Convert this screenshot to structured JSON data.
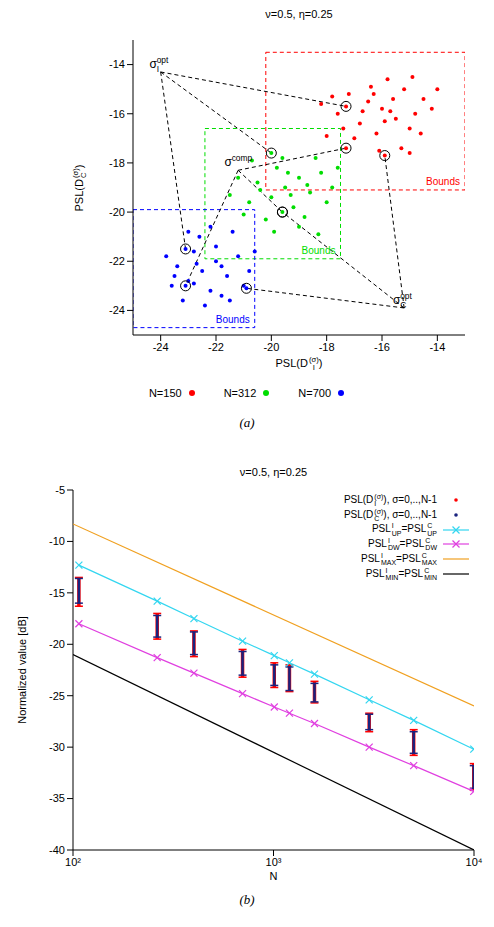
{
  "chart_data": [
    {
      "type": "scatter",
      "title": "ν=0.5, η=0.25",
      "caption": "(a)",
      "x_label": [
        {
          "text": "PSL(D",
          "sub": "I",
          "sup": "(σ)"
        },
        {
          "text": ")"
        }
      ],
      "y_label": [
        {
          "text": "PSL(D",
          "sub": "C",
          "sup": "(σ)"
        },
        {
          "text": ")"
        }
      ],
      "xlim": [
        -25,
        -13
      ],
      "ylim": [
        -25,
        -13
      ],
      "xticks": [
        -24,
        -22,
        -20,
        -18,
        -16,
        -14
      ],
      "yticks": [
        -24,
        -22,
        -20,
        -18,
        -16,
        -14
      ],
      "legend": "bottom",
      "series": [
        {
          "name": "N=150",
          "color": "#ff0000",
          "x": [
            -16.0,
            -15.5,
            -16.5,
            -15.2,
            -14.8,
            -16.8,
            -17.2,
            -15.8,
            -14.5,
            -16.2,
            -15.0,
            -17.6,
            -18.2,
            -14.2,
            -15.6,
            -16.4,
            -17.0,
            -15.3,
            -14.9,
            -16.7,
            -15.9,
            -17.4,
            -18.0,
            -16.1,
            -15.0,
            -14.6,
            -16.3,
            -15.7,
            -17.8,
            -14.0,
            -17.3,
            -17.3,
            -15.9
          ],
          "values": [
            -15.8,
            -16.2,
            -15.5,
            -15.0,
            -16.0,
            -16.4,
            -15.2,
            -14.6,
            -15.4,
            -16.8,
            -16.6,
            -16.0,
            -15.6,
            -15.8,
            -15.4,
            -14.9,
            -17.0,
            -17.4,
            -14.5,
            -15.9,
            -16.3,
            -16.6,
            -16.9,
            -17.5,
            -17.6,
            -16.8,
            -15.2,
            -15.9,
            -15.3,
            -15.0,
            -15.7,
            -17.4,
            -17.7
          ]
        },
        {
          "name": "N=312",
          "color": "#00dd00",
          "x": [
            -19.5,
            -19.0,
            -20.0,
            -18.6,
            -19.8,
            -20.5,
            -18.2,
            -19.2,
            -20.8,
            -18.8,
            -17.8,
            -21.2,
            -19.6,
            -20.2,
            -18.4,
            -19.0,
            -17.6,
            -21.0,
            -19.4,
            -20.4,
            -18.0,
            -19.9,
            -21.5,
            -18.7,
            -20.7,
            -19.3,
            -18.3,
            -20.0,
            -19.6
          ],
          "values": [
            -19.0,
            -18.6,
            -19.4,
            -19.2,
            -18.2,
            -18.8,
            -18.4,
            -19.8,
            -19.6,
            -20.2,
            -19.0,
            -18.6,
            -17.8,
            -20.3,
            -17.8,
            -20.6,
            -18.2,
            -20.1,
            -18.4,
            -19.1,
            -19.6,
            -20.8,
            -19.3,
            -18.9,
            -17.9,
            -19.3,
            -20.9,
            -17.6,
            -20.0
          ]
        },
        {
          "name": "N=700",
          "color": "#0000ff",
          "x": [
            -22.5,
            -22.0,
            -23.0,
            -21.6,
            -22.8,
            -23.4,
            -21.2,
            -22.2,
            -23.6,
            -21.8,
            -20.8,
            -23.8,
            -22.6,
            -22.0,
            -21.4,
            -23.2,
            -22.4,
            -21.0,
            -23.0,
            -22.8,
            -21.8,
            -20.6,
            -23.5,
            -22.2,
            -21.5,
            -22.7,
            -23.1,
            -23.1,
            -20.9
          ],
          "values": [
            -22.4,
            -22.0,
            -22.8,
            -22.6,
            -21.6,
            -22.2,
            -21.8,
            -23.2,
            -23.0,
            -23.4,
            -22.4,
            -21.8,
            -21.0,
            -21.4,
            -20.8,
            -23.6,
            -23.8,
            -23.0,
            -20.8,
            -22.9,
            -22.2,
            -21.6,
            -22.6,
            -20.6,
            -23.6,
            -22.1,
            -21.5,
            -23.0,
            -23.1
          ]
        }
      ],
      "bounds": [
        {
          "label": "Bounds",
          "color": "#ff0000",
          "x": [
            -20.2,
            -13.0
          ],
          "y": [
            -19.1,
            -13.5
          ]
        },
        {
          "label": "Bounds",
          "color": "#00dd00",
          "x": [
            -22.4,
            -17.5
          ],
          "y": [
            -21.9,
            -16.6
          ]
        },
        {
          "label": "Bounds",
          "color": "#0000ff",
          "x": [
            -25.0,
            -20.6
          ],
          "y": [
            -24.7,
            -19.9
          ]
        }
      ],
      "annotations": [
        {
          "label": [
            {
              "text": "σ",
              "sub": "I",
              "sup": "opt"
            }
          ],
          "x": -24.0,
          "y": -14.3,
          "targets": {
            "x": [
              -17.3,
              -20.0,
              -23.1
            ],
            "y": [
              -15.7,
              -17.6,
              -21.5
            ]
          }
        },
        {
          "label": [
            {
              "text": "σ",
              "sup": "comp"
            }
          ],
          "x": -21.2,
          "y": -18.3,
          "targets": {
            "x": [
              -17.3,
              -19.6,
              -23.1
            ],
            "y": [
              -17.4,
              -20.0,
              -23.0
            ]
          }
        },
        {
          "label": [
            {
              "text": "σ",
              "sub": "C",
              "sup": "opt"
            }
          ],
          "x": -15.2,
          "y": -23.9,
          "targets": {
            "x": [
              -15.9,
              -19.6,
              -20.9
            ],
            "y": [
              -17.7,
              -20.0,
              -23.1
            ]
          }
        }
      ]
    },
    {
      "type": "line",
      "title": "ν=0.5, η=0.25",
      "caption": "(b)",
      "x_label": "N",
      "y_label": "Normalized value [dB]",
      "log": "x",
      "xlim": [
        100,
        10000
      ],
      "ylim": [
        -40,
        -5
      ],
      "xticks": [
        {
          "value": 100,
          "label": "10²"
        },
        {
          "value": 1000,
          "label": "10³"
        },
        {
          "value": 10000,
          "label": "10⁴"
        }
      ],
      "yticks": [
        -40,
        -35,
        -30,
        -25,
        -20,
        -15,
        -10,
        -5
      ],
      "legend": "top right",
      "series": [
        {
          "name": [
            {
              "text": "PSL(D",
              "sub": "I",
              "sup": "(σ)"
            },
            {
              "text": "), σ=0,..,N-1"
            }
          ],
          "type": "range",
          "marker": "dot",
          "color": "#ff0000",
          "x": [
            107,
            263,
            401,
            701,
            1009,
            1201,
            1601,
            3001,
            5003,
            9973
          ],
          "low": [
            -16.3,
            -19.5,
            -21.2,
            -23.2,
            -24.2,
            -24.6,
            -25.7,
            -28.5,
            -30.8,
            -34.2
          ],
          "high": [
            -13.5,
            -17.0,
            -18.7,
            -20.5,
            -21.8,
            -22.0,
            -23.6,
            -26.7,
            -28.3,
            -31.6
          ]
        },
        {
          "name": [
            {
              "text": "PSL(D",
              "sub": "C",
              "sup": "(σ)"
            },
            {
              "text": "), σ=0,..,N-1"
            }
          ],
          "type": "range",
          "marker": "dot",
          "color": "#1a237e",
          "x": [
            107,
            263,
            401,
            701,
            1009,
            1201,
            1601,
            3001,
            5003,
            9973
          ],
          "low": [
            -16.0,
            -19.3,
            -21.0,
            -23.0,
            -24.0,
            -24.5,
            -25.6,
            -28.3,
            -30.6,
            -34.0
          ],
          "high": [
            -13.6,
            -17.2,
            -18.8,
            -20.7,
            -22.0,
            -22.2,
            -23.8,
            -26.8,
            -28.5,
            -31.8
          ]
        },
        {
          "name": [
            {
              "text": "PSL",
              "sub": "UP",
              "sup": "I"
            },
            {
              "text": "=PSL",
              "sub": "UP",
              "sup": "C"
            }
          ],
          "type": "line",
          "marker": "x",
          "color": "#33d6f0",
          "x": [
            107,
            263,
            401,
            701,
            1009,
            1201,
            1601,
            3001,
            5003,
            9973
          ],
          "values": [
            -12.3,
            -15.8,
            -17.5,
            -19.7,
            -21.1,
            -21.8,
            -22.9,
            -25.4,
            -27.4,
            -30.2
          ]
        },
        {
          "name": [
            {
              "text": "PSL",
              "sub": "DW",
              "sup": "I"
            },
            {
              "text": "=PSL",
              "sub": "DW",
              "sup": "C"
            }
          ],
          "type": "line",
          "marker": "x",
          "color": "#e040e0",
          "x": [
            107,
            263,
            401,
            701,
            1009,
            1201,
            1601,
            3001,
            5003,
            9973
          ],
          "values": [
            -18.0,
            -21.3,
            -22.8,
            -24.8,
            -26.1,
            -26.7,
            -27.7,
            -30.0,
            -31.8,
            -34.3
          ]
        },
        {
          "name": [
            {
              "text": "PSL",
              "sub": "MAX",
              "sup": "I"
            },
            {
              "text": "=PSL",
              "sub": "MAX",
              "sup": "C"
            }
          ],
          "type": "line",
          "marker": "none",
          "color": "#f0a020",
          "x": [
            100,
            10000
          ],
          "values": [
            -8.3,
            -26.0
          ]
        },
        {
          "name": [
            {
              "text": "PSL",
              "sub": "MIN",
              "sup": "I"
            },
            {
              "text": "=PSL",
              "sub": "MIN",
              "sup": "C"
            }
          ],
          "type": "line",
          "marker": "none",
          "color": "#000000",
          "x": [
            100,
            10000
          ],
          "values": [
            -21.0,
            -40.0
          ]
        }
      ]
    }
  ]
}
